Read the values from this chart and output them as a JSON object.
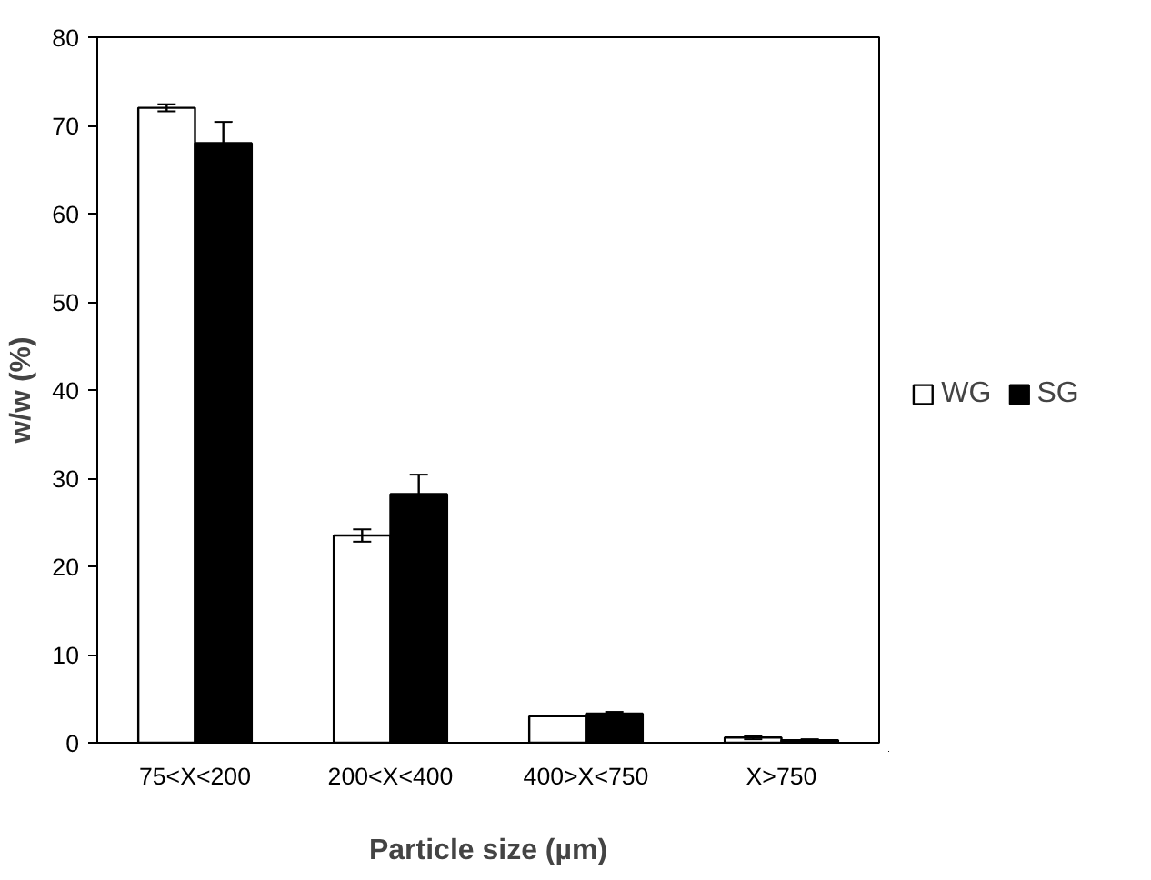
{
  "chart_data": {
    "type": "bar",
    "xlabel": "Particle size (µm)",
    "ylabel": "w/w (%)",
    "categories": [
      "75<X<200",
      "200<X<400",
      "400>X<750",
      "X>750"
    ],
    "ylim": [
      0,
      80
    ],
    "yticks": [
      0,
      10,
      20,
      30,
      40,
      50,
      60,
      70,
      80
    ],
    "grid": false,
    "legend": "right",
    "series": [
      {
        "name": "WG",
        "color": "#ffffff",
        "values": [
          72.0,
          23.5,
          3.0,
          0.6
        ],
        "errors": [
          0.4,
          0.7,
          null,
          0.2
        ]
      },
      {
        "name": "SG",
        "color": "#000000",
        "values": [
          68.0,
          28.2,
          3.3,
          0.3
        ],
        "errors": [
          2.4,
          2.2,
          0.2,
          0.1
        ]
      }
    ]
  }
}
